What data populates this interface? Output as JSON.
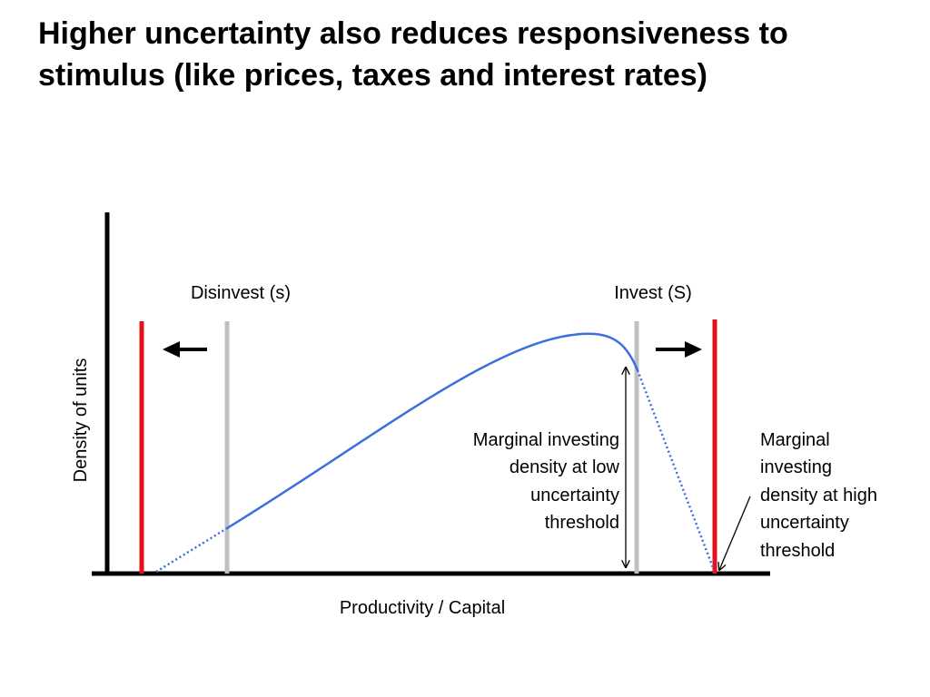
{
  "slide": {
    "title_line1": "Higher uncertainty also reduces responsiveness to",
    "title_line2": "stimulus (like prices, taxes and interest rates)"
  },
  "diagram": {
    "y_axis_label": "Density of units",
    "x_axis_label": "Productivity / Capital",
    "disinvest_label": "Disinvest (s)",
    "invest_label": "Invest (S)",
    "low_uncertainty_note": [
      "Marginal investing",
      "density at low",
      "uncertainty",
      "threshold"
    ],
    "high_uncertainty_note": [
      "Marginal",
      "investing",
      "density at high",
      "uncertainty",
      "threshold"
    ],
    "colors": {
      "high_uncertainty_threshold": "#e3121b",
      "low_uncertainty_threshold": "#c0c0c0",
      "density_curve": "#3b6fe0",
      "axes": "#000000"
    }
  }
}
